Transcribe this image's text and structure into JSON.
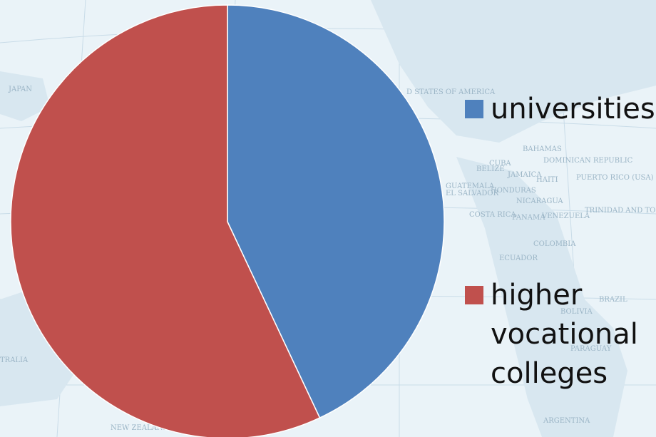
{
  "chart_data": {
    "type": "pie",
    "title": "",
    "series": [
      {
        "name": "universities",
        "value": 43,
        "color": "#4F81BD"
      },
      {
        "name": "higher vocational colleges",
        "value": 57,
        "color": "#C0504D"
      }
    ],
    "legend": {
      "position": "right",
      "entries": [
        {
          "label": "universities",
          "lines": [
            "universities"
          ],
          "color": "#4F81BD"
        },
        {
          "label": "higher vocational colleges",
          "lines": [
            "higher",
            "vocational",
            "colleges"
          ],
          "color": "#C0504D"
        }
      ]
    },
    "start_angle_deg": 0,
    "direction": "clockwise",
    "background": "world-map"
  },
  "background": {
    "map_labels": [
      "D STATES OF AMERICA",
      "JAPAN",
      "CUBA",
      "BAHAMAS",
      "DOMINICAN REPUBLIC",
      "JAMAICA",
      "HAITI",
      "PUERTO RICO (USA)",
      "GUATEMALA",
      "EL SALVADOR",
      "HONDURAS",
      "NICARAGUA",
      "COSTA RICA",
      "PANAMA",
      "VENEZUELA",
      "COLOMBIA",
      "ECUADOR",
      "BRAZIL",
      "BOLIVIA",
      "PARAGUAY",
      "ARGENTINA",
      "TRALIA",
      "NEW ZEALAND",
      "BELIZE",
      "TRINIDAD AND TOBAGO"
    ]
  }
}
